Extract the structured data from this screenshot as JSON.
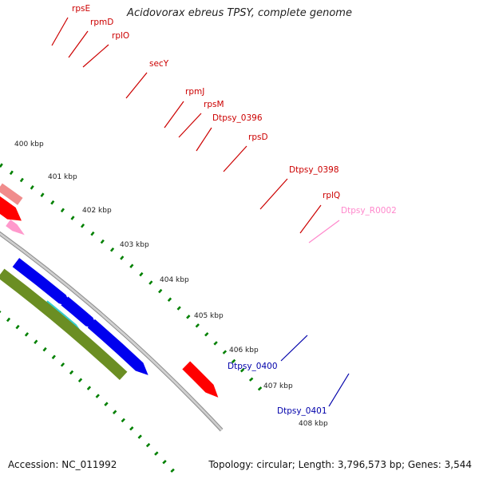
{
  "title": "Acidovorax ebreus TPSY, complete genome",
  "footer": {
    "accession": "Accession: NC_011992",
    "topology": "Topology: circular; Length: 3,796,573 bp; Genes: 3,544"
  },
  "colors": {
    "ribosomal_protein": "#f08c8c",
    "gene_forward_red": "#ff0000",
    "secY": "#99ff33",
    "Dtpsy_0398": "#ff8c00",
    "rRNA_pink": "#ff99cc",
    "gene_blue": "#0000ee",
    "gene_olive": "#6b8e23",
    "gene_cyan": "#33cccc",
    "tick_green": "#008000",
    "label_red": "#cc0000",
    "label_blue": "#0000aa",
    "label_pink": "#ff88cc",
    "backbone_gray": "#999999"
  },
  "kbp_ticks": [
    "400 kbp",
    "401 kbp",
    "402 kbp",
    "403 kbp",
    "404 kbp",
    "405 kbp",
    "406 kbp",
    "407 kbp",
    "408 kbp"
  ],
  "gene_labels": [
    {
      "text": "rpsE",
      "color": "label_red"
    },
    {
      "text": "rpmD",
      "color": "label_red"
    },
    {
      "text": "rplO",
      "color": "label_red"
    },
    {
      "text": "secY",
      "color": "label_red"
    },
    {
      "text": "rpmJ",
      "color": "label_red"
    },
    {
      "text": "rpsM",
      "color": "label_red"
    },
    {
      "text": "Dtpsy_0396",
      "color": "label_red"
    },
    {
      "text": "rpsD",
      "color": "label_red"
    },
    {
      "text": "Dtpsy_0398",
      "color": "label_red"
    },
    {
      "text": "rplQ",
      "color": "label_red"
    },
    {
      "text": "Dtpsy_R0002",
      "color": "label_pink"
    },
    {
      "text": "Dtpsy_0400",
      "color": "label_blue"
    },
    {
      "text": "Dtpsy_0401",
      "color": "label_blue"
    }
  ]
}
